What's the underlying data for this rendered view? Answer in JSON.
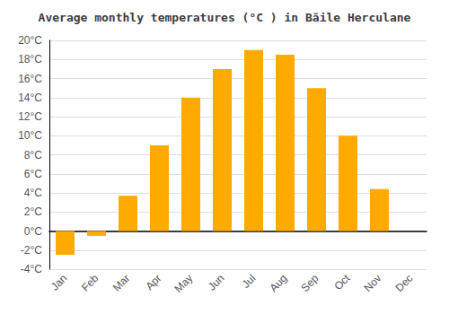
{
  "chart_data": {
    "type": "bar",
    "title": "Average monthly temperatures (°C ) in Băile Herculane",
    "categories": [
      "Jan",
      "Feb",
      "Mar",
      "Apr",
      "May",
      "Jun",
      "Jul",
      "Aug",
      "Sep",
      "Oct",
      "Nov",
      "Dec"
    ],
    "values": [
      -2.5,
      -0.5,
      3.7,
      9.0,
      14.0,
      17.0,
      19.0,
      18.5,
      15.0,
      10.0,
      4.4,
      0.0
    ],
    "color": "#FFAA00",
    "ylim": [
      -4,
      20
    ],
    "yticks": [
      {
        "value": -4,
        "label": "-4°C"
      },
      {
        "value": -2,
        "label": "-2°C"
      },
      {
        "value": 0,
        "label": "0°C"
      },
      {
        "value": 2,
        "label": "2°C"
      },
      {
        "value": 4,
        "label": "4°C"
      },
      {
        "value": 6,
        "label": "6°C"
      },
      {
        "value": 8,
        "label": "8°C"
      },
      {
        "value": 10,
        "label": "10°C"
      },
      {
        "value": 12,
        "label": "12°C"
      },
      {
        "value": 14,
        "label": "14°C"
      },
      {
        "value": 16,
        "label": "16°C"
      },
      {
        "value": 18,
        "label": "18°C"
      },
      {
        "value": 20,
        "label": "20°C"
      }
    ],
    "grid": true
  }
}
